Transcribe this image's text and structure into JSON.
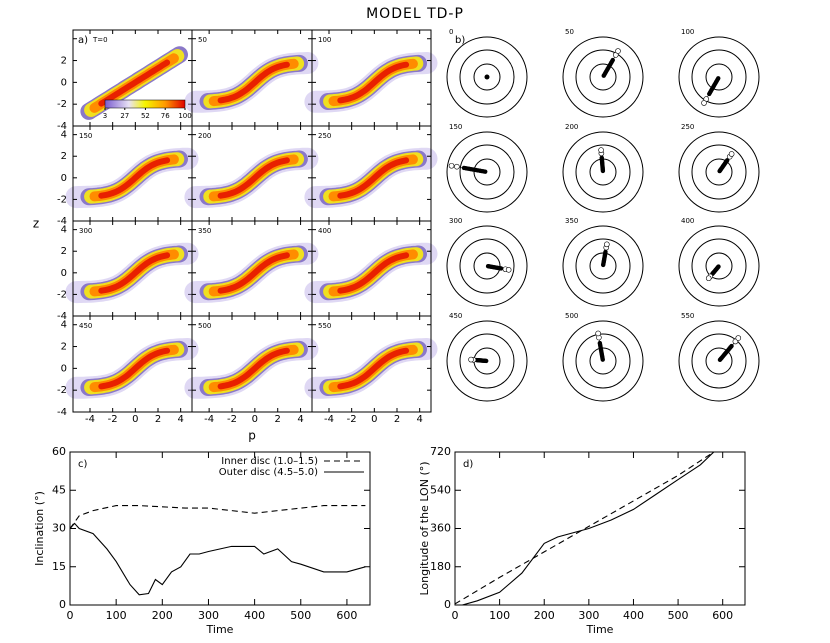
{
  "title": "MODEL TD-P",
  "chart_data": [
    {
      "type": "density-grid",
      "label": "a)",
      "xlabel": "p",
      "ylabel": "z",
      "panels": [
        "T=0",
        "50",
        "100",
        "150",
        "200",
        "250",
        "300",
        "350",
        "400",
        "450",
        "500",
        "550"
      ],
      "xlim": [
        -5.5,
        5
      ],
      "ylim": [
        -4,
        4.8
      ],
      "xticks": [
        -4,
        -2,
        0,
        2,
        4
      ],
      "yticks": [
        -4,
        -2,
        0,
        2,
        4
      ],
      "colorbar_ticks": [
        3,
        27,
        52,
        76,
        100
      ]
    },
    {
      "type": "polar-grid",
      "label": "b)",
      "panels": [
        "0",
        "50",
        "100",
        "150",
        "200",
        "250",
        "300",
        "350",
        "400",
        "450",
        "500",
        "550"
      ]
    },
    {
      "type": "line",
      "label": "c)",
      "xlabel": "Time",
      "ylabel": "Inclination (°)",
      "xlim": [
        0,
        650
      ],
      "ylim": [
        0,
        60
      ],
      "xticks": [
        0,
        100,
        200,
        300,
        400,
        500,
        600
      ],
      "yticks": [
        0,
        15,
        30,
        45,
        60
      ],
      "series": [
        {
          "name": "Inner disc (1.0–1.5)",
          "color": "#000000",
          "style": "dashed",
          "x": [
            0,
            20,
            50,
            100,
            150,
            200,
            250,
            300,
            350,
            400,
            450,
            500,
            550,
            600,
            640
          ],
          "values": [
            30,
            35,
            37,
            39,
            39,
            38.5,
            38,
            38,
            37,
            36,
            37,
            38,
            39,
            39,
            39
          ]
        },
        {
          "name": "Outer disc (4.5–5.0)",
          "color": "#000000",
          "style": "solid",
          "x": [
            0,
            10,
            20,
            50,
            80,
            100,
            130,
            150,
            170,
            185,
            200,
            220,
            240,
            260,
            280,
            300,
            350,
            400,
            420,
            450,
            480,
            500,
            550,
            600,
            640
          ],
          "values": [
            30,
            32,
            30,
            28,
            22,
            17,
            8,
            4,
            4.5,
            10,
            8,
            13,
            15,
            20,
            20,
            21,
            23,
            23,
            20,
            22,
            17,
            16,
            13,
            13,
            15
          ]
        }
      ]
    },
    {
      "type": "line",
      "label": "d)",
      "xlabel": "Time",
      "ylabel": "Longitude of the LON (°)",
      "xlim": [
        0,
        650
      ],
      "ylim": [
        0,
        720
      ],
      "xticks": [
        0,
        100,
        200,
        300,
        400,
        500,
        600
      ],
      "yticks": [
        0,
        180,
        360,
        540,
        720
      ],
      "series": [
        {
          "color": "#000000",
          "style": "dashed",
          "x": [
            0,
            100,
            200,
            300,
            400,
            500,
            580
          ],
          "values": [
            5,
            130,
            250,
            370,
            490,
            610,
            720
          ]
        },
        {
          "color": "#000000",
          "style": "solid",
          "x": [
            0,
            50,
            100,
            150,
            200,
            230,
            300,
            350,
            400,
            450,
            500,
            550,
            580
          ],
          "values": [
            -10,
            20,
            60,
            150,
            290,
            320,
            360,
            400,
            450,
            520,
            590,
            660,
            720
          ]
        }
      ]
    }
  ]
}
